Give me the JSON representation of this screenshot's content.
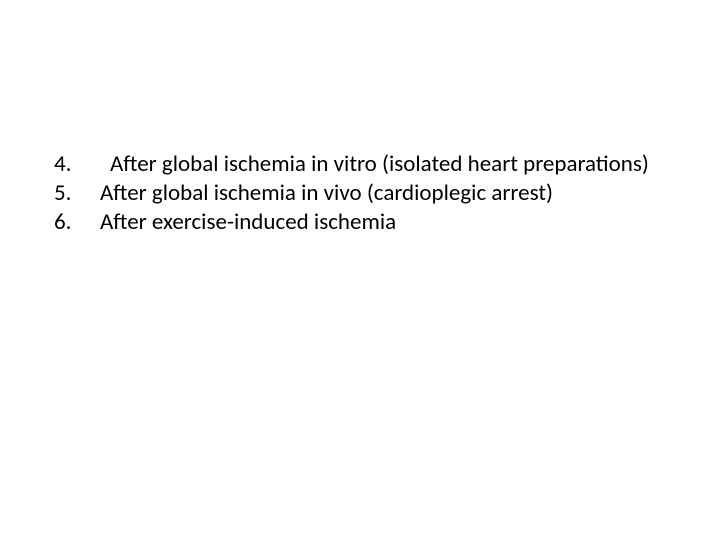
{
  "background_color": "#ffffff",
  "text_color": "#000000",
  "font_family": "Calibri",
  "font_size_pt": 23,
  "list": {
    "start": 4,
    "items": [
      {
        "number": "4.",
        "text": " After global ischemia in vitro (isolated heart preparations)",
        "indent": true
      },
      {
        "number": "5.",
        "text": "After global ischemia in vivo (cardioplegic arrest)",
        "indent": false
      },
      {
        "number": "6.",
        "text": "After exercise-induced ischemia",
        "indent": false
      }
    ]
  }
}
